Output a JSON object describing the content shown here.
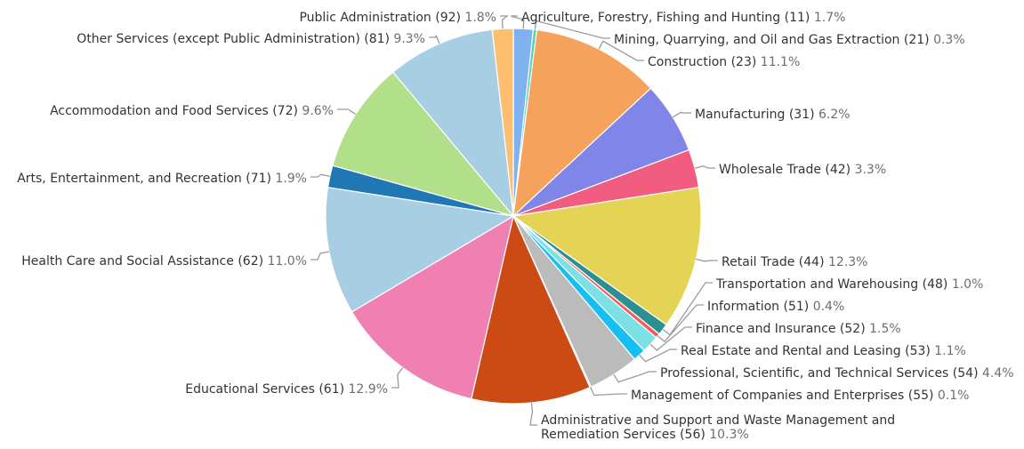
{
  "chart_data": {
    "type": "pie",
    "title": "",
    "start_angle_deg": 0,
    "direction": "clockwise",
    "slices": [
      {
        "label": "Agriculture, Forestry, Fishing and Hunting (11)",
        "value": 1.7,
        "pct_text": "1.7%",
        "color": "#7FB2F0"
      },
      {
        "label": "Mining, Quarrying, and Oil and Gas Extraction (21)",
        "value": 0.3,
        "pct_text": "0.3%",
        "color": "#4ED3B8"
      },
      {
        "label": "Construction (23)",
        "value": 11.1,
        "pct_text": "11.1%",
        "color": "#F5A35C"
      },
      {
        "label": "Manufacturing (31)",
        "value": 6.2,
        "pct_text": "6.2%",
        "color": "#8086E8"
      },
      {
        "label": "Wholesale Trade (42)",
        "value": 3.3,
        "pct_text": "3.3%",
        "color": "#F15C80"
      },
      {
        "label": "Retail Trade (44)",
        "value": 12.3,
        "pct_text": "12.3%",
        "color": "#E4D354"
      },
      {
        "label": "Transportation and Warehousing (48)",
        "value": 1.0,
        "pct_text": "1.0%",
        "color": "#2B908F"
      },
      {
        "label": "Information (51)",
        "value": 0.4,
        "pct_text": "0.4%",
        "color": "#F45B5B"
      },
      {
        "label": "Finance and Insurance (52)",
        "value": 1.5,
        "pct_text": "1.5%",
        "color": "#7CE0E4"
      },
      {
        "label": "Real Estate and Rental and Leasing (53)",
        "value": 1.1,
        "pct_text": "1.1%",
        "color": "#17BEF2"
      },
      {
        "label": "Professional, Scientific, and Technical Services (54)",
        "value": 4.4,
        "pct_text": "4.4%",
        "color": "#BBBBBB"
      },
      {
        "label": "Management of Companies and Enterprises (55)",
        "value": 0.1,
        "pct_text": "0.1%",
        "color": "#8F8F8F"
      },
      {
        "label": "Administrative and Support and Waste Management and Remediation Services (56)",
        "value": 10.3,
        "pct_text": "10.3%",
        "color": "#CC4A14"
      },
      {
        "label": "Educational Services (61)",
        "value": 12.9,
        "pct_text": "12.9%",
        "color": "#F07FB2"
      },
      {
        "label": "Health Care and Social Assistance (62)",
        "value": 11.0,
        "pct_text": "11.0%",
        "color": "#A7CEE3"
      },
      {
        "label": "Arts, Entertainment, and Recreation (71)",
        "value": 1.9,
        "pct_text": "1.9%",
        "color": "#1F78B4"
      },
      {
        "label": "Accommodation and Food Services (72)",
        "value": 9.6,
        "pct_text": "9.6%",
        "color": "#B2DF8A"
      },
      {
        "label": "Other Services (except Public Administration) (81)",
        "value": 9.3,
        "pct_text": "9.3%",
        "color": "#A7CEE3"
      },
      {
        "label": "Public Administration (92)",
        "value": 1.8,
        "pct_text": "1.8%",
        "color": "#FDBF6F"
      }
    ]
  }
}
